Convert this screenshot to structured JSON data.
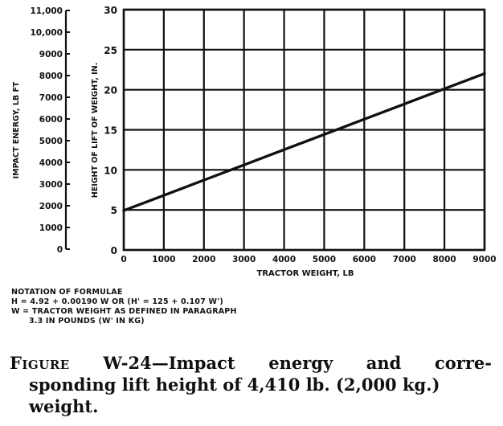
{
  "chart_data": {
    "type": "line",
    "title": "",
    "xlabel": "TRACTOR WEIGHT, LB",
    "ylabel": "HEIGHT OF LIFT OF WEIGHT, IN.",
    "ylabel_secondary": "IMPACT ENERGY, LB FT",
    "xlim": [
      0,
      9000
    ],
    "ylim": [
      0,
      30
    ],
    "ylim_secondary": [
      0,
      11000
    ],
    "grid": true,
    "legend": null,
    "x_ticks": [
      "0",
      "1000",
      "2000",
      "3000",
      "4000",
      "5000",
      "6000",
      "7000",
      "8000",
      "9000"
    ],
    "y_ticks": [
      "0",
      "5",
      "10",
      "15",
      "20",
      "25",
      "30"
    ],
    "y_ticks_secondary": [
      "0",
      "1000",
      "2000",
      "3000",
      "4000",
      "5000",
      "6000",
      "7000",
      "8000",
      "9000",
      "10,000",
      "11,000"
    ],
    "series": [
      {
        "name": "H = 4.92 + 0.00190 W",
        "x": [
          0,
          1000,
          2000,
          3000,
          4000,
          5000,
          6000,
          7000,
          8000,
          9000
        ],
        "values": [
          4.92,
          6.82,
          8.72,
          10.62,
          12.52,
          14.42,
          16.32,
          18.22,
          20.12,
          22.02
        ]
      }
    ]
  },
  "notation": {
    "heading": "NOTATION OF FORMULAE",
    "formula": "H = 4.92 + 0.00190 W OR (H' = 125 + 0.107 W')",
    "w_def_line1": "W = TRACTOR WEIGHT AS DEFINED IN PARAGRAPH",
    "w_def_line2": "3.3 IN POUNDS (W' IN KG)"
  },
  "caption": {
    "label": "Figure",
    "number": "W-24",
    "dash": "—",
    "w1": "Impact",
    "w2": "energy",
    "w3": "and",
    "w4": "corre-",
    "line2": "sponding lift height of 4,410 lb. (2,000 kg.)",
    "line3": "weight."
  }
}
